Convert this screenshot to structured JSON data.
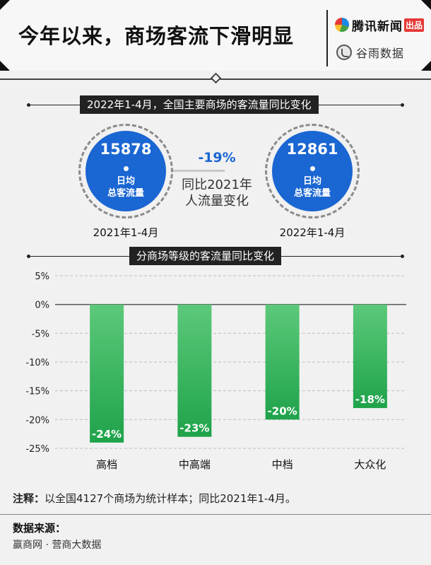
{
  "header": {
    "title": "今年以来，商场客流下滑明显",
    "logo_primary": "腾讯新闻",
    "logo_primary_badge": "出品",
    "logo_secondary": "谷雨数据"
  },
  "section1": {
    "title": "2022年1-4月，全国主要商场的客流量同比变化",
    "left": {
      "value": "15878",
      "line1": "日均",
      "line2": "总客流量",
      "period": "2021年1-4月"
    },
    "right": {
      "value": "12861",
      "line1": "日均",
      "line2": "总客流量",
      "period": "2022年1-4月"
    },
    "change": "-19%",
    "change_desc_line1": "同比2021年",
    "change_desc_line2": "人流量变化",
    "circle_color": "#1a66d2",
    "change_color": "#1a66d2"
  },
  "section2": {
    "title": "分商场等级的客流量同比变化"
  },
  "chart_data": {
    "type": "bar",
    "categories": [
      "高档",
      "中高端",
      "中档",
      "大众化"
    ],
    "values": [
      -24,
      -23,
      -20,
      -18
    ],
    "value_labels": [
      "-24%",
      "-23%",
      "-20%",
      "-18%"
    ],
    "ylim": [
      -25,
      5
    ],
    "yticks": [
      5,
      0,
      -5,
      -10,
      -15,
      -20,
      -25
    ],
    "ytick_labels": [
      "5%",
      "0%",
      "-5%",
      "-10%",
      "-15%",
      "-20%",
      "-25%"
    ],
    "grid": true,
    "bar_color_top": "#5cc97a",
    "bar_color_bottom": "#1fa34a"
  },
  "note": {
    "label": "注释：",
    "text": "以全国4127个商场为统计样本；同比2021年1-4月。"
  },
  "source": {
    "label": "数据来源：",
    "text": "赢商网 · 营商大数据"
  }
}
